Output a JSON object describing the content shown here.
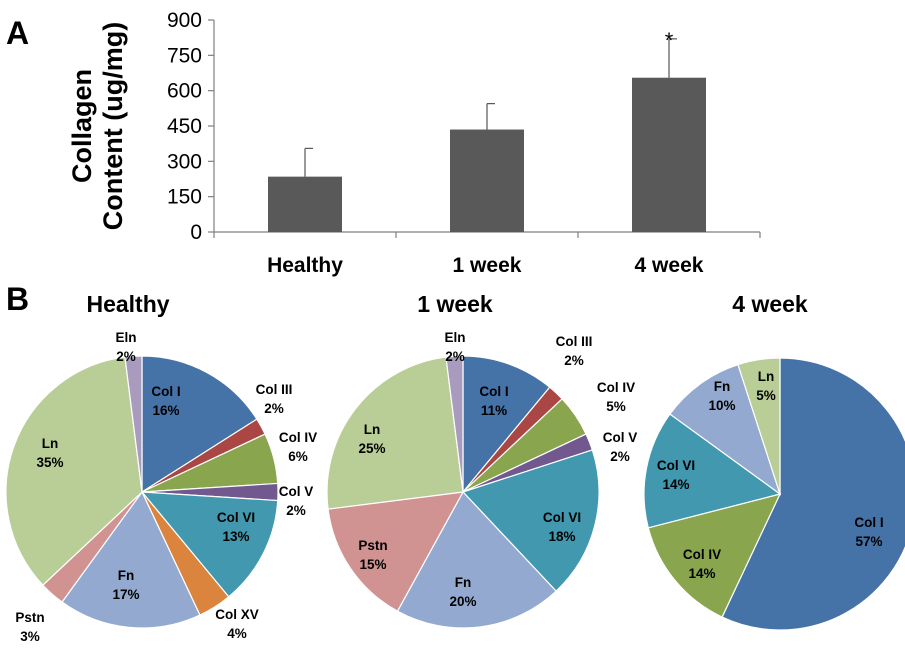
{
  "panels": {
    "a": "A",
    "b": "B"
  },
  "chart_data": [
    {
      "type": "bar",
      "ylabel_line1": "Collagen",
      "ylabel_line2": "Content (ug/mg)",
      "categories": [
        "Healthy",
        "1 week",
        "4 week"
      ],
      "values": [
        235,
        435,
        655
      ],
      "error_upper": [
        120,
        110,
        165
      ],
      "annotations": [
        "",
        "",
        "*"
      ],
      "yticks": [
        0,
        150,
        300,
        450,
        600,
        750,
        900
      ],
      "ylim": [
        0,
        900
      ],
      "bar_color": "#595959",
      "grid": false
    },
    {
      "type": "pie",
      "title": "Healthy",
      "slices": [
        {
          "label": "Col I",
          "value": 16,
          "display": "16%",
          "color": "#4572a7"
        },
        {
          "label": "Col III",
          "value": 2,
          "display": "2%",
          "color": "#aa4643"
        },
        {
          "label": "Col IV",
          "value": 6,
          "display": "6%",
          "color": "#89a54e"
        },
        {
          "label": "Col V",
          "value": 2,
          "display": "2%",
          "color": "#71588f"
        },
        {
          "label": "Col VI",
          "value": 13,
          "display": "13%",
          "color": "#4198af"
        },
        {
          "label": "Col XV",
          "value": 4,
          "display": "4%",
          "color": "#db843d"
        },
        {
          "label": "Fn",
          "value": 17,
          "display": "17%",
          "color": "#93a9cf"
        },
        {
          "label": "Pstn",
          "value": 3,
          "display": "3%",
          "color": "#d19392"
        },
        {
          "label": "Ln",
          "value": 35,
          "display": "35%",
          "color": "#b9cd96"
        },
        {
          "label": "Eln",
          "value": 2,
          "display": "2%",
          "color": "#a99bbd"
        }
      ]
    },
    {
      "type": "pie",
      "title": "1 week",
      "slices": [
        {
          "label": "Col I",
          "value": 11,
          "display": "11%",
          "color": "#4572a7"
        },
        {
          "label": "Col III",
          "value": 2,
          "display": "2%",
          "color": "#aa4643"
        },
        {
          "label": "Col IV",
          "value": 5,
          "display": "5%",
          "color": "#89a54e"
        },
        {
          "label": "Col V",
          "value": 2,
          "display": "2%",
          "color": "#71588f"
        },
        {
          "label": "Col VI",
          "value": 18,
          "display": "18%",
          "color": "#4198af"
        },
        {
          "label": "Fn",
          "value": 20,
          "display": "20%",
          "color": "#93a9cf"
        },
        {
          "label": "Pstn",
          "value": 15,
          "display": "15%",
          "color": "#d19392"
        },
        {
          "label": "Ln",
          "value": 25,
          "display": "25%",
          "color": "#b9cd96"
        },
        {
          "label": "Eln",
          "value": 2,
          "display": "2%",
          "color": "#a99bbd"
        }
      ]
    },
    {
      "type": "pie",
      "title": "4 week",
      "slices": [
        {
          "label": "Col I",
          "value": 57,
          "display": "57%",
          "color": "#4572a7"
        },
        {
          "label": "Col IV",
          "value": 14,
          "display": "14%",
          "color": "#89a54e"
        },
        {
          "label": "Col VI",
          "value": 14,
          "display": "14%",
          "color": "#4198af"
        },
        {
          "label": "Fn",
          "value": 10,
          "display": "10%",
          "color": "#93a9cf"
        },
        {
          "label": "Ln",
          "value": 5,
          "display": "5%",
          "color": "#b9cd96"
        }
      ]
    }
  ]
}
